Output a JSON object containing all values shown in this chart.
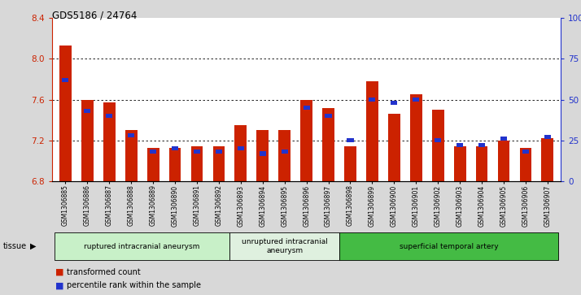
{
  "title": "GDS5186 / 24764",
  "samples": [
    "GSM1306885",
    "GSM1306886",
    "GSM1306887",
    "GSM1306888",
    "GSM1306889",
    "GSM1306890",
    "GSM1306891",
    "GSM1306892",
    "GSM1306893",
    "GSM1306894",
    "GSM1306895",
    "GSM1306896",
    "GSM1306897",
    "GSM1306898",
    "GSM1306899",
    "GSM1306900",
    "GSM1306901",
    "GSM1306902",
    "GSM1306903",
    "GSM1306904",
    "GSM1306905",
    "GSM1306906",
    "GSM1306907"
  ],
  "red_values": [
    8.13,
    7.6,
    7.57,
    7.3,
    7.13,
    7.13,
    7.14,
    7.14,
    7.35,
    7.3,
    7.3,
    7.6,
    7.52,
    7.14,
    7.78,
    7.46,
    7.65,
    7.5,
    7.14,
    7.14,
    7.2,
    7.13,
    7.22
  ],
  "blue_values": [
    62,
    43,
    40,
    28,
    18,
    20,
    18,
    18,
    20,
    17,
    18,
    45,
    40,
    25,
    50,
    48,
    50,
    25,
    22,
    22,
    26,
    18,
    27
  ],
  "ylim_left": [
    6.8,
    8.4
  ],
  "ylim_right": [
    0,
    100
  ],
  "yticks_left": [
    6.8,
    7.2,
    7.6,
    8.0,
    8.4
  ],
  "yticks_right": [
    0,
    25,
    50,
    75,
    100
  ],
  "ytick_labels_right": [
    "0",
    "25",
    "50",
    "75",
    "100%"
  ],
  "groups": [
    {
      "label": "ruptured intracranial aneurysm",
      "start": 0,
      "end": 8,
      "color": "#c8f0c8"
    },
    {
      "label": "unruptured intracranial\naneurysm",
      "start": 8,
      "end": 13,
      "color": "#dff0df"
    },
    {
      "label": "superficial temporal artery",
      "start": 13,
      "end": 23,
      "color": "#44bb44"
    }
  ],
  "bar_color_red": "#cc2200",
  "bar_color_blue": "#2233cc",
  "bar_width": 0.55,
  "background_color": "#d8d8d8",
  "plot_bg_color": "#ffffff",
  "left_axis_color": "#cc2200",
  "right_axis_color": "#2233cc",
  "tissue_label": "tissue",
  "legend_red": "transformed count",
  "legend_blue": "percentile rank within the sample",
  "grid_yticks": [
    8.0,
    7.6,
    7.2
  ]
}
